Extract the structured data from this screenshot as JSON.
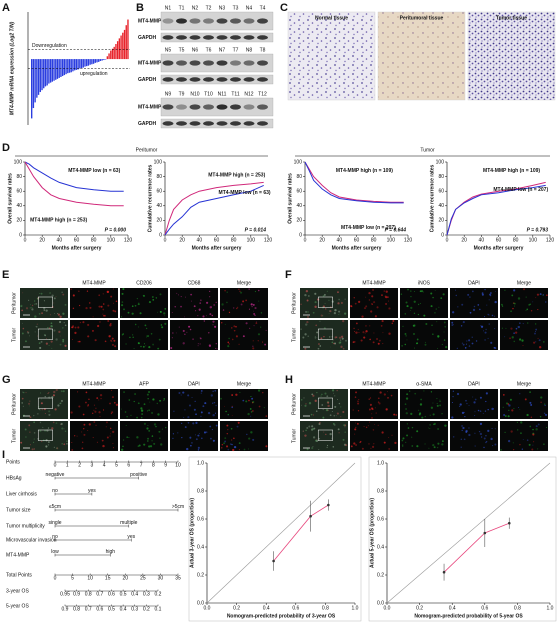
{
  "panel_labels": [
    "A",
    "B",
    "C",
    "D",
    "E",
    "F",
    "G",
    "H",
    "I"
  ],
  "chart_data": [
    {
      "type": "bar",
      "y_label": "MT4-MMP mRNA expression (Log2 T/N)",
      "annotations": [
        "Downregulation",
        "upregulation"
      ],
      "values": [
        -6.3,
        -5.2,
        -4.6,
        -4.1,
        -3.8,
        -3.5,
        -3.3,
        -3.1,
        -2.9,
        -2.8,
        -2.6,
        -2.5,
        -2.4,
        -2.3,
        -2.2,
        -2.1,
        -2.0,
        -1.9,
        -1.8,
        -1.7,
        -1.6,
        -1.5,
        -1.45,
        -1.4,
        -1.3,
        -1.2,
        -1.15,
        -1.1,
        -1.0,
        -0.95,
        -0.9,
        -0.8,
        -0.75,
        -0.7,
        -0.6,
        -0.55,
        -0.5,
        -0.4,
        -0.35,
        -0.3,
        -0.2,
        -0.15,
        -0.1,
        -0.05,
        0.3,
        0.6,
        0.9,
        1.1,
        1.3,
        1.6,
        1.9,
        2.2,
        2.5,
        2.8,
        3.1,
        3.6,
        4.2
      ],
      "color_down": "#2b3ee0",
      "color_up": "#e8232b",
      "ylim": [
        -7,
        5
      ],
      "reference_lines": [
        1,
        -1
      ]
    },
    {
      "type": "line",
      "x_label": "Months after surgery",
      "y_label": "Overall survival rates",
      "annotation": "P = 0.000",
      "xlim": [
        0,
        120
      ],
      "ylim": [
        0,
        100
      ],
      "xticks": [
        0,
        20,
        40,
        60,
        80,
        100,
        120
      ],
      "yticks": [
        0,
        20,
        40,
        60,
        80,
        100
      ],
      "series": [
        {
          "name": "MT4-MMP low (n = 63)",
          "color": "#2633d4",
          "x": [
            0,
            5,
            10,
            20,
            30,
            40,
            60,
            80,
            100,
            115
          ],
          "values": [
            100,
            97,
            92,
            85,
            78,
            72,
            65,
            62,
            60,
            60
          ]
        },
        {
          "name": "MT4-MMP high (n = 253)",
          "color": "#d0287a",
          "x": [
            0,
            5,
            10,
            20,
            30,
            40,
            60,
            80,
            100,
            115
          ],
          "values": [
            100,
            90,
            80,
            65,
            55,
            50,
            45,
            42,
            40,
            40
          ]
        }
      ]
    },
    {
      "type": "line",
      "x_label": "Months after surgery",
      "y_label": "Cumulative recurrence rates",
      "annotation": "P = 0.014",
      "xlim": [
        0,
        120
      ],
      "ylim": [
        0,
        100
      ],
      "xticks": [
        0,
        20,
        40,
        60,
        80,
        100,
        120
      ],
      "yticks": [
        0,
        20,
        40,
        60,
        80,
        100
      ],
      "series": [
        {
          "name": "MT4-MMP high (n = 253)",
          "color": "#d0287a",
          "x": [
            0,
            5,
            10,
            20,
            30,
            40,
            60,
            80,
            100,
            115
          ],
          "values": [
            0,
            20,
            35,
            48,
            55,
            60,
            65,
            68,
            70,
            72
          ]
        },
        {
          "name": "MT4-MMP low (n = 63)",
          "color": "#2633d4",
          "x": [
            0,
            5,
            10,
            20,
            30,
            40,
            60,
            80,
            100,
            115
          ],
          "values": [
            0,
            8,
            15,
            25,
            38,
            45,
            50,
            55,
            60,
            68
          ]
        }
      ]
    },
    {
      "type": "line",
      "x_label": "Months after surgery",
      "y_label": "Overall survival rates",
      "annotation": "P = 0.644",
      "xlim": [
        0,
        120
      ],
      "ylim": [
        0,
        100
      ],
      "xticks": [
        0,
        20,
        40,
        60,
        80,
        100,
        120
      ],
      "yticks": [
        0,
        20,
        40,
        60,
        80,
        100
      ],
      "series": [
        {
          "name": "MT4-MMP high (n = 109)",
          "color": "#d0287a",
          "x": [
            0,
            5,
            10,
            20,
            30,
            40,
            60,
            80,
            100,
            115
          ],
          "values": [
            100,
            90,
            80,
            68,
            58,
            52,
            48,
            46,
            45,
            45
          ]
        },
        {
          "name": "MT4-MMP low (n = 207)",
          "color": "#2633d4",
          "x": [
            0,
            5,
            10,
            20,
            30,
            40,
            60,
            80,
            100,
            115
          ],
          "values": [
            100,
            88,
            75,
            63,
            55,
            50,
            47,
            45,
            44,
            44
          ]
        }
      ]
    },
    {
      "type": "line",
      "x_label": "Months after surgery",
      "y_label": "Cumulative recurrence rates",
      "annotation": "P = 0.793",
      "xlim": [
        0,
        120
      ],
      "ylim": [
        0,
        100
      ],
      "xticks": [
        0,
        20,
        40,
        60,
        80,
        100,
        120
      ],
      "yticks": [
        0,
        20,
        40,
        60,
        80,
        100
      ],
      "series": [
        {
          "name": "MT4-MMP high (n = 109)",
          "color": "#d0287a",
          "x": [
            0,
            5,
            10,
            20,
            30,
            40,
            60,
            80,
            100,
            115
          ],
          "values": [
            0,
            20,
            35,
            45,
            52,
            56,
            60,
            63,
            68,
            72
          ]
        },
        {
          "name": "MT4-MMP low (n = 207)",
          "color": "#2633d4",
          "x": [
            0,
            5,
            10,
            20,
            30,
            40,
            60,
            80,
            100,
            115
          ],
          "values": [
            0,
            22,
            35,
            44,
            50,
            55,
            58,
            62,
            65,
            68
          ]
        }
      ]
    },
    {
      "type": "scatter",
      "x_label": "Nomogram-predicted probability of 3-year OS",
      "y_label": "Actual 3-year OS (proportion)",
      "xlim": [
        0,
        1
      ],
      "ylim": [
        0,
        1
      ],
      "xticks": [
        {
          "value": 0,
          "label": "0.0"
        },
        0.2,
        0.4,
        0.6,
        0.8,
        {
          "value": 1,
          "label": "1.0"
        }
      ],
      "yticks": [
        {
          "value": 0,
          "label": "0.0"
        },
        0.2,
        0.4,
        0.6,
        0.8,
        {
          "value": 1,
          "label": "1.0"
        }
      ],
      "series": [
        {
          "color": "#e8487e",
          "x": [
            0.45,
            0.7,
            0.82
          ],
          "values": [
            0.3,
            0.62,
            0.7
          ],
          "errors": [
            0.07,
            0.11,
            0.04
          ]
        }
      ]
    },
    {
      "type": "scatter",
      "x_label": "Nomogram-predicted probability of 5-year OS",
      "y_label": "Actual 5-year OS (proportion)",
      "xlim": [
        0,
        1
      ],
      "ylim": [
        0,
        1
      ],
      "xticks": [
        {
          "value": 0,
          "label": "0.0"
        },
        0.2,
        0.4,
        0.6,
        0.8,
        {
          "value": 1,
          "label": "1.0"
        }
      ],
      "yticks": [
        {
          "value": 0,
          "label": "0.0"
        },
        0.2,
        0.4,
        0.6,
        0.8,
        {
          "value": 1,
          "label": "1.0"
        }
      ],
      "series": [
        {
          "color": "#e8487e",
          "x": [
            0.35,
            0.6,
            0.75
          ],
          "values": [
            0.22,
            0.5,
            0.57
          ],
          "errors": [
            0.06,
            0.1,
            0.04
          ]
        }
      ]
    }
  ],
  "blot": {
    "rows": [
      "MT4-MMP",
      "GAPDH"
    ],
    "groups": [
      [
        "N1",
        "T1",
        "N2",
        "T2",
        "N3",
        "T3",
        "N4",
        "T4"
      ],
      [
        "N5",
        "T5",
        "N6",
        "T6",
        "N7",
        "T7",
        "N8",
        "T8"
      ],
      [
        "N9",
        "T9",
        "N10",
        "T10",
        "N11",
        "T11",
        "N12",
        "T12"
      ]
    ]
  },
  "histology": [
    "Normal tissue",
    "Peritumoral tissue",
    "Tumor tissue"
  ],
  "section_d": [
    "Peritumor",
    "Tumor"
  ],
  "if_rows": [
    "Peritumor",
    "Tumor"
  ],
  "if_panels": [
    {
      "channels": [
        "MT4-MMP",
        "CD206",
        "CD68",
        "Merge"
      ],
      "colors": [
        "#e02020",
        "#1fa32a",
        "#d62f9c",
        "#e58a0b"
      ]
    },
    {
      "channels": [
        "MT4-MMP",
        "iNOS",
        "DAPI",
        "Merge"
      ],
      "colors": [
        "#e02020",
        "#1fa32a",
        "#3355dd",
        "#e58a0b"
      ]
    },
    {
      "channels": [
        "MT4-MMP",
        "AFP",
        "DAPI",
        "Merge"
      ],
      "colors": [
        "#e02020",
        "#1fa32a",
        "#3355dd",
        "#e58a0b"
      ]
    },
    {
      "channels": [
        "MT4-MMP",
        "α-SMA",
        "DAPI",
        "Merge"
      ],
      "colors": [
        "#e02020",
        "#1fa32a",
        "#3355dd",
        "#e58a0b"
      ]
    }
  ],
  "nomogram": {
    "rows": [
      {
        "label": "Points",
        "ticks": [
          0,
          1,
          2,
          3,
          4,
          5,
          6,
          7,
          8,
          9,
          10
        ]
      },
      {
        "label": "HBsAg",
        "levels": [
          {
            "label": "negative",
            "points": 0
          },
          {
            "label": "positive",
            "points": 6.8
          }
        ]
      },
      {
        "label": "Liver cirrhosis",
        "levels": [
          {
            "label": "no",
            "points": 0
          },
          {
            "label": "yes",
            "points": 3
          }
        ]
      },
      {
        "label": "Tumor size",
        "levels": [
          {
            "label": "≤5cm",
            "points": 0
          },
          {
            "label": ">5cm",
            "points": 10
          }
        ]
      },
      {
        "label": "Tumor multiplicity",
        "levels": [
          {
            "label": "single",
            "points": 0
          },
          {
            "label": "multiple",
            "points": 6
          }
        ]
      },
      {
        "label": "Microvascular invasion",
        "levels": [
          {
            "label": "no",
            "points": 0
          },
          {
            "label": "yes",
            "points": 6.2
          }
        ]
      },
      {
        "label": "MT4-MMP",
        "levels": [
          {
            "label": "low",
            "points": 0
          },
          {
            "label": "high",
            "points": 4.5
          }
        ]
      },
      {
        "label": "Total Points",
        "ticks": [
          0,
          5,
          10,
          15,
          20,
          25,
          30,
          35
        ]
      },
      {
        "label": "3-year OS",
        "ticks": [
          0.95,
          0.9,
          0.8,
          0.7,
          0.6,
          0.5,
          0.4,
          0.3,
          0.2
        ]
      },
      {
        "label": "5-year OS",
        "ticks": [
          0.9,
          0.8,
          0.7,
          0.6,
          0.5,
          0.4,
          0.3,
          0.2,
          0.1
        ]
      }
    ]
  }
}
